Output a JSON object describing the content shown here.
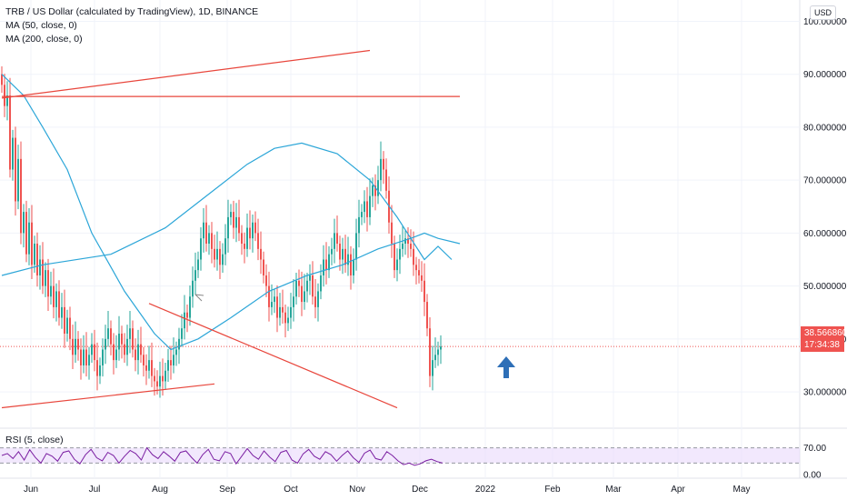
{
  "header": {
    "title": "TRB / US Dollar (calculated by TradingView), 1D, BINANCE",
    "indicators": [
      "MA (50, close, 0)",
      "MA (200, close, 0)"
    ],
    "rsi_label": "RSI (5, close)",
    "currency": "USD"
  },
  "price_tag": {
    "value": "38.566860",
    "countdown": "17:34:38"
  },
  "colors": {
    "up": "#26a69a",
    "down": "#ef5350",
    "ma": "#2ca6d8",
    "trend": "#e8463c",
    "arrow": "#2e6fb7",
    "rsi": "#7b1fa2",
    "rsi_band": "#e9d8fb"
  },
  "chart_data": {
    "type": "candlestick",
    "x_ticks": [
      "Jun",
      "Jul",
      "Aug",
      "Sep",
      "Oct",
      "Nov",
      "Dec",
      "2022",
      "Feb",
      "Mar",
      "Apr",
      "May"
    ],
    "y_ticks": [
      "100.000000",
      "90.000000",
      "80.000000",
      "70.000000",
      "60.000000",
      "50.000000",
      "40.000000",
      "30.000000"
    ],
    "ylim": [
      24,
      103
    ],
    "rsi_ticks": [
      "70.00",
      "0.00"
    ],
    "rsi_lim": [
      0,
      100
    ],
    "closes": [
      88,
      84,
      86,
      72,
      78,
      66,
      74,
      60,
      64,
      56,
      62,
      54,
      58,
      52,
      55,
      50,
      53,
      48,
      50,
      46,
      49,
      44,
      46,
      41,
      44,
      40,
      37,
      40,
      38,
      35,
      38,
      35,
      37,
      39,
      36,
      33,
      35,
      38,
      40,
      42,
      39,
      36,
      38,
      41,
      39,
      37,
      40,
      42,
      38,
      36,
      39,
      37,
      35,
      34,
      36,
      33,
      32,
      31,
      33,
      32,
      34,
      36,
      35,
      37,
      38,
      40,
      42,
      45,
      44,
      48,
      51,
      53,
      55,
      59,
      62,
      58,
      60,
      57,
      55,
      57,
      54,
      56,
      59,
      63,
      64,
      61,
      63,
      60,
      58,
      57,
      61,
      59,
      62,
      60,
      57,
      55,
      52,
      50,
      46,
      47,
      48,
      44,
      46,
      45,
      43,
      44,
      46,
      48,
      51,
      50,
      47,
      49,
      51,
      52,
      48,
      46,
      49,
      52,
      55,
      53,
      56,
      57,
      60,
      58,
      55,
      57,
      54,
      56,
      52,
      55,
      60,
      63,
      64,
      66,
      63,
      67,
      69,
      67,
      70,
      74,
      72,
      68,
      62,
      58,
      53,
      55,
      57,
      58,
      59,
      58,
      57,
      54,
      53,
      52,
      51,
      47,
      42,
      33,
      36,
      37,
      38,
      38.57
    ],
    "ma50": [
      [
        0,
        52
      ],
      [
        15,
        54
      ],
      [
        40,
        56
      ],
      [
        60,
        61
      ],
      [
        75,
        67
      ],
      [
        90,
        73
      ],
      [
        100,
        76
      ],
      [
        110,
        77
      ],
      [
        123,
        75
      ],
      [
        135,
        70
      ],
      [
        145,
        63
      ],
      [
        155,
        55
      ],
      [
        160,
        57.5
      ],
      [
        165,
        55
      ]
    ],
    "ma200": [
      [
        0,
        90
      ],
      [
        8,
        86
      ],
      [
        15,
        80
      ],
      [
        24,
        72
      ],
      [
        33,
        60
      ],
      [
        45,
        49
      ],
      [
        56,
        41
      ],
      [
        62,
        38
      ],
      [
        72,
        40
      ],
      [
        84,
        44
      ],
      [
        98,
        49
      ],
      [
        112,
        52
      ],
      [
        125,
        54
      ],
      [
        138,
        57
      ],
      [
        150,
        59
      ],
      [
        155,
        60
      ],
      [
        160,
        59
      ],
      [
        168,
        58
      ]
    ],
    "trendlines": [
      {
        "x1": 0,
        "y1": 85.8,
        "x2": 168,
        "y2": 85.8
      },
      {
        "x1": 54,
        "y1": 46.7,
        "x2": 145,
        "y2": 27.0
      },
      {
        "x1": 0,
        "y1": 27.0,
        "x2": 78,
        "y2": 31.5
      },
      {
        "x1": 0,
        "y1": 85.5,
        "x2": 135,
        "y2": 94.5
      }
    ],
    "rsi": [
      50,
      55,
      42,
      60,
      38,
      65,
      45,
      30,
      55,
      48,
      35,
      58,
      62,
      40,
      28,
      52,
      66,
      44,
      36,
      58,
      50,
      30,
      48,
      63,
      55,
      38,
      70,
      52,
      42,
      60,
      48,
      35,
      58,
      62,
      45,
      30,
      52,
      66,
      40,
      36,
      60,
      55,
      28,
      48,
      68,
      50,
      40,
      62,
      46,
      34,
      58,
      63,
      38,
      30,
      54,
      66,
      48,
      40,
      60,
      52,
      35,
      50,
      62,
      44,
      32,
      56,
      64,
      42,
      38,
      60,
      50,
      36,
      26,
      30,
      24,
      28,
      36,
      40,
      34,
      30
    ]
  }
}
